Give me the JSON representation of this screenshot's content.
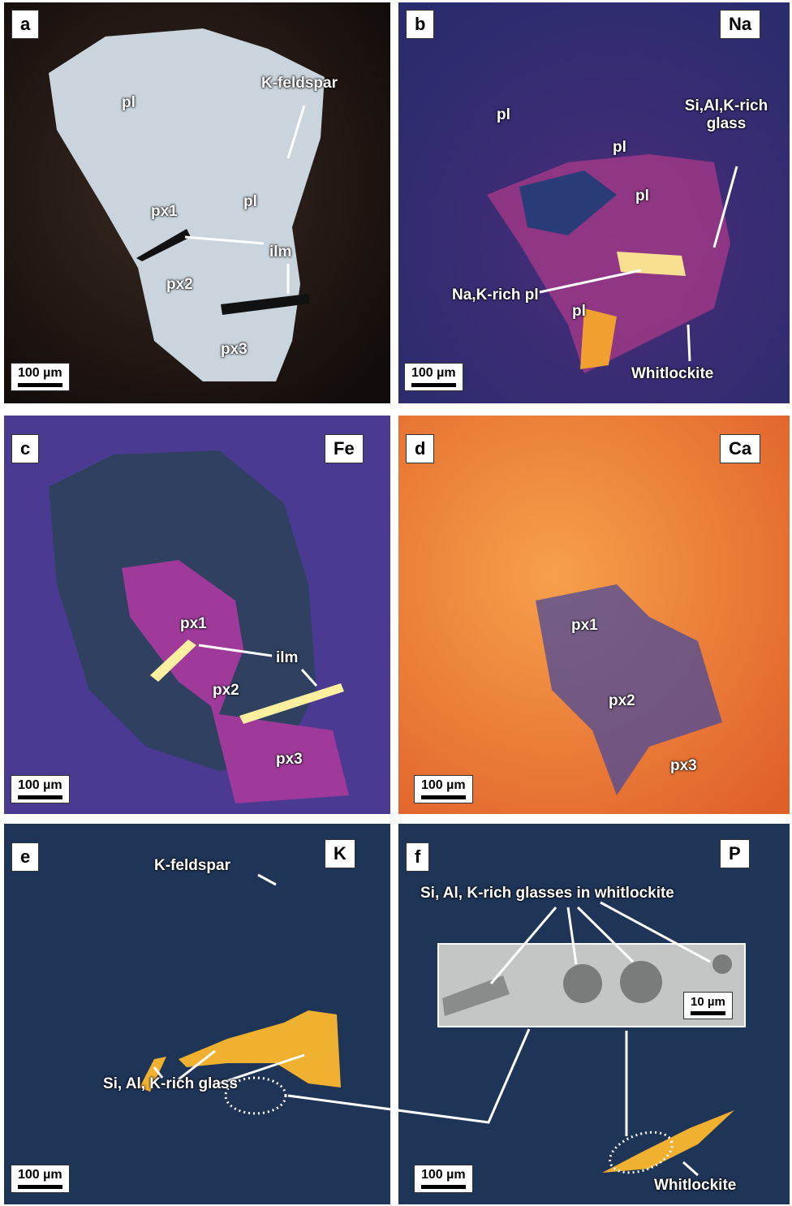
{
  "panels": [
    {
      "letter": "a",
      "labels": [
        "pl",
        "K-feldspar",
        "pl",
        "px1",
        "ilm",
        "px2",
        "px3"
      ],
      "scale_bar": "100 µm"
    },
    {
      "letter": "b",
      "element": "Na",
      "labels": [
        "pl",
        "pl",
        "Si,Al,K-rich glass",
        "pl",
        "Na,K-rich pl",
        "pl",
        "Whitlockite"
      ],
      "scale_bar": "100 µm"
    },
    {
      "letter": "c",
      "element": "Fe",
      "labels": [
        "px1",
        "ilm",
        "px2",
        "px3"
      ],
      "scale_bar": "100 µm"
    },
    {
      "letter": "d",
      "element": "Ca",
      "labels": [
        "px1",
        "px2",
        "px3"
      ],
      "scale_bar": "100 µm"
    },
    {
      "letter": "e",
      "element": "K",
      "labels": [
        "K-feldspar",
        "Si, Al, K-rich glass"
      ],
      "scale_bar": "100 µm"
    },
    {
      "letter": "f",
      "element": "P",
      "labels": [
        "Si, Al, K-rich glasses in whitlockite",
        "Whitlockite"
      ],
      "inset_scale_bar": "10 µm",
      "scale_bar": "100 µm"
    }
  ]
}
